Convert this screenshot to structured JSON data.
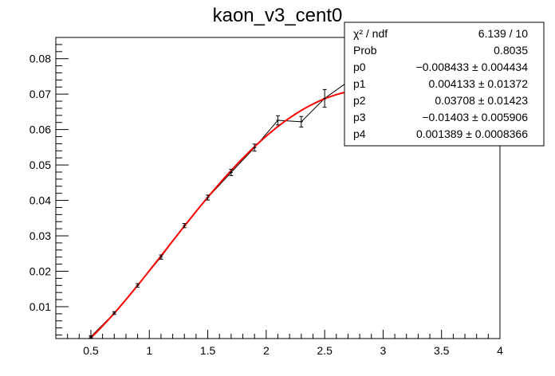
{
  "chart_data": {
    "type": "scatter",
    "title": "kaon_v3_cent0",
    "xlabel": "",
    "ylabel": "",
    "xlim": [
      0.2,
      4.0
    ],
    "ylim": [
      0.001,
      0.086
    ],
    "x_ticks": [
      0.5,
      1,
      1.5,
      2,
      2.5,
      3,
      3.5,
      4
    ],
    "x_tick_labels": [
      "0.5",
      "1",
      "1.5",
      "2",
      "2.5",
      "3",
      "3.5",
      "4"
    ],
    "y_ticks": [
      0.01,
      0.02,
      0.03,
      0.04,
      0.05,
      0.06,
      0.07,
      0.08
    ],
    "y_tick_labels": [
      "0.01",
      "0.02",
      "0.03",
      "0.04",
      "0.05",
      "0.06",
      "0.07",
      "0.08"
    ],
    "grid": false,
    "series": [
      {
        "x": [
          0.5,
          0.7,
          0.9,
          1.1,
          1.3,
          1.5,
          1.7,
          1.9,
          2.1,
          2.3,
          2.5,
          2.7
        ],
        "y": [
          0.0015,
          0.0082,
          0.016,
          0.024,
          0.0329,
          0.0408,
          0.0479,
          0.0549,
          0.0626,
          0.0622,
          0.0688,
          0.0735
        ],
        "yerr": [
          0.0003,
          0.0004,
          0.0005,
          0.0006,
          0.0006,
          0.0007,
          0.0009,
          0.001,
          0.0013,
          0.0015,
          0.0025,
          0.003
        ],
        "color": "#000000"
      }
    ],
    "fit": {
      "x_range": [
        0.5,
        2.9
      ],
      "params": [
        -0.008433,
        0.004133,
        0.03708,
        -0.01403,
        0.001389
      ],
      "color": "#ff0000"
    },
    "legend_position": "top-right"
  },
  "stats_box": {
    "rows": [
      {
        "label": "χ² / ndf",
        "value": "6.139 / 10"
      },
      {
        "label": "Prob",
        "value": "0.8035"
      },
      {
        "label": "p0",
        "value": "−0.008433  ± 0.004434"
      },
      {
        "label": "p1",
        "value": "0.004133  ± 0.01372"
      },
      {
        "label": "p2",
        "value": "0.03708  ± 0.01423"
      },
      {
        "label": "p3",
        "value": "−0.01403  ± 0.005906"
      },
      {
        "label": "p4",
        "value": "0.001389  ± 0.0008366"
      }
    ]
  }
}
